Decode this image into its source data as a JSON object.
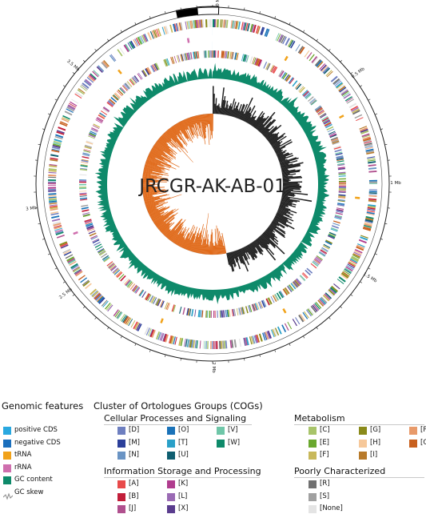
{
  "map": {
    "title": "JRCGR-AK-AB-01",
    "scale_labels": [
      "0.5 Mb",
      "1 Mb",
      "1.5 Mb",
      "2 Mb",
      "2.5 Mb",
      "3 Mb",
      "3.5 Mb"
    ],
    "top_label": "0 Mb",
    "colors": {
      "positive_cds": "#29a8e0",
      "negative_cds": "#1a6fbd",
      "trna": "#f1a21a",
      "rrna": "#cf6fae",
      "gc_content": "#0e8a6a",
      "gc_skew_pos": "#222222",
      "gc_skew_neg": "#e06a1a"
    }
  },
  "legend": {
    "genomic_features": {
      "title": "Genomic features",
      "items": [
        {
          "label": "positive CDS",
          "color": "#29a8e0"
        },
        {
          "label": "negative CDS",
          "color": "#1a6fbd"
        },
        {
          "label": "tRNA",
          "color": "#f1a21a"
        },
        {
          "label": "rRNA",
          "color": "#cf6fae"
        },
        {
          "label": "GC content",
          "color": "#0e8a6a"
        },
        {
          "label": "GC skew",
          "icon": "gc-skew-line-icon"
        }
      ]
    },
    "cog": {
      "title": "Cluster of Ortologues Groups (COGs)",
      "cellular": {
        "title": "Cellular Processes and Signaling",
        "items": [
          {
            "label": "[D]",
            "color": "#6e7fc0"
          },
          {
            "label": "[M]",
            "color": "#2b3f9a"
          },
          {
            "label": "[N]",
            "color": "#6a94c4"
          },
          {
            "label": "[O]",
            "color": "#1a72b8"
          },
          {
            "label": "[T]",
            "color": "#2aa0c8"
          },
          {
            "label": "[U]",
            "color": "#0e5e70"
          },
          {
            "label": "[V]",
            "color": "#6fc6a8"
          },
          {
            "label": "[W]",
            "color": "#0e8a6a"
          }
        ]
      },
      "info": {
        "title": "Information Storage and Processing",
        "items": [
          {
            "label": "[A]",
            "color": "#e84a4a"
          },
          {
            "label": "[B]",
            "color": "#c21e3a"
          },
          {
            "label": "[J]",
            "color": "#b0508e"
          },
          {
            "label": "[K]",
            "color": "#b03c8e"
          },
          {
            "label": "[L]",
            "color": "#9a6ab4"
          },
          {
            "label": "[X]",
            "color": "#5a3c8e"
          }
        ]
      },
      "metabolism": {
        "title": "Metabolism",
        "items": [
          {
            "label": "[C]",
            "color": "#a8c46a"
          },
          {
            "label": "[E]",
            "color": "#6aa82e"
          },
          {
            "label": "[F]",
            "color": "#c8b85a"
          },
          {
            "label": "[G]",
            "color": "#8a8a1a"
          },
          {
            "label": "[H]",
            "color": "#f6c89a"
          },
          {
            "label": "[I]",
            "color": "#b87a2a"
          },
          {
            "label": "[P]",
            "color": "#e89a6a"
          },
          {
            "label": "[Q]",
            "color": "#c8601e"
          }
        ]
      },
      "poorly": {
        "title": "Poorly Characterized",
        "items": [
          {
            "label": "[R]",
            "color": "#707070"
          },
          {
            "label": "[S]",
            "color": "#a0a0a0"
          },
          {
            "label": "[None]",
            "color": "#e4e4e4"
          }
        ]
      }
    }
  }
}
